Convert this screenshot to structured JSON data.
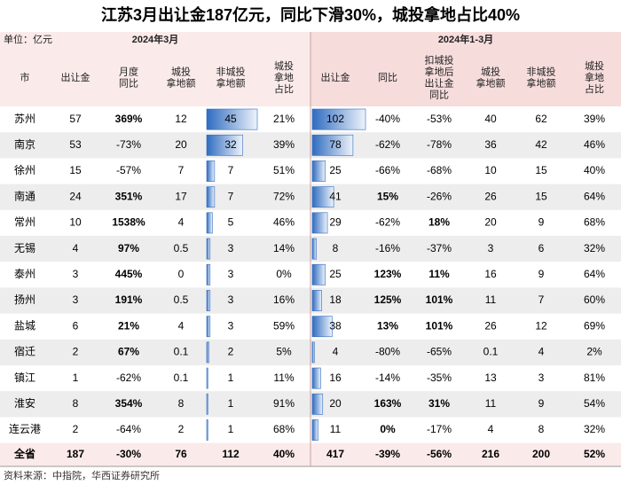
{
  "title": "江苏3月出让金187亿元，同比下滑30%，城投拿地占比40%",
  "unit": "单位：亿元",
  "groups": [
    "2024年3月",
    "2024年1-3月"
  ],
  "columns": [
    [
      "市"
    ],
    [
      "出让金"
    ],
    [
      "月度",
      "同比"
    ],
    [
      "城投",
      "拿地额"
    ],
    [
      "非城投",
      "拿地额"
    ],
    [
      "城投",
      "拿地",
      "占比"
    ],
    [
      "出让金"
    ],
    [
      "同比"
    ],
    [
      "扣城投",
      "拿地后",
      "出让金",
      "同比"
    ],
    [
      "城投",
      "拿地额"
    ],
    [
      "非城投",
      "拿地额"
    ],
    [
      "城投",
      "拿地",
      "占比"
    ]
  ],
  "rows": [
    [
      "苏州",
      57,
      "369%",
      12,
      45,
      "21%",
      102,
      "-40%",
      "-53%",
      40,
      62,
      "39%"
    ],
    [
      "南京",
      53,
      "-73%",
      20,
      32,
      "39%",
      78,
      "-62%",
      "-78%",
      36,
      42,
      "46%"
    ],
    [
      "徐州",
      15,
      "-57%",
      7,
      7,
      "51%",
      25,
      "-66%",
      "-68%",
      10,
      15,
      "40%"
    ],
    [
      "南通",
      24,
      "351%",
      17,
      7,
      "72%",
      41,
      "15%",
      "-26%",
      26,
      15,
      "64%"
    ],
    [
      "常州",
      10,
      "1538%",
      4,
      5,
      "46%",
      29,
      "-62%",
      "18%",
      20,
      9,
      "68%"
    ],
    [
      "无锡",
      4,
      "97%",
      0.5,
      3,
      "14%",
      8,
      "-16%",
      "-37%",
      3,
      6,
      "32%"
    ],
    [
      "泰州",
      3,
      "445%",
      0,
      3,
      "0%",
      25,
      "123%",
      "11%",
      16,
      9,
      "64%"
    ],
    [
      "扬州",
      3,
      "191%",
      0.5,
      3,
      "16%",
      18,
      "125%",
      "101%",
      11,
      7,
      "60%"
    ],
    [
      "盐城",
      6,
      "21%",
      4,
      3,
      "59%",
      38,
      "13%",
      "101%",
      26,
      12,
      "69%"
    ],
    [
      "宿迁",
      2,
      "67%",
      0.1,
      2,
      "5%",
      4,
      "-80%",
      "-65%",
      0.1,
      4,
      "2%"
    ],
    [
      "镇江",
      1,
      "-62%",
      0.1,
      1,
      "11%",
      16,
      "-14%",
      "-35%",
      13,
      3,
      "81%"
    ],
    [
      "淮安",
      8,
      "354%",
      8,
      1,
      "91%",
      20,
      "163%",
      "31%",
      11,
      9,
      "54%"
    ],
    [
      "连云港",
      2,
      "-64%",
      2,
      1,
      "68%",
      11,
      "0%",
      "-17%",
      4,
      8,
      "32%"
    ]
  ],
  "total": [
    "全省",
    187,
    "-30%",
    76,
    112,
    "40%",
    417,
    "-39%",
    "-56%",
    216,
    200,
    "52%"
  ],
  "source": "资料来源：中指院，华西证券研究所"
}
